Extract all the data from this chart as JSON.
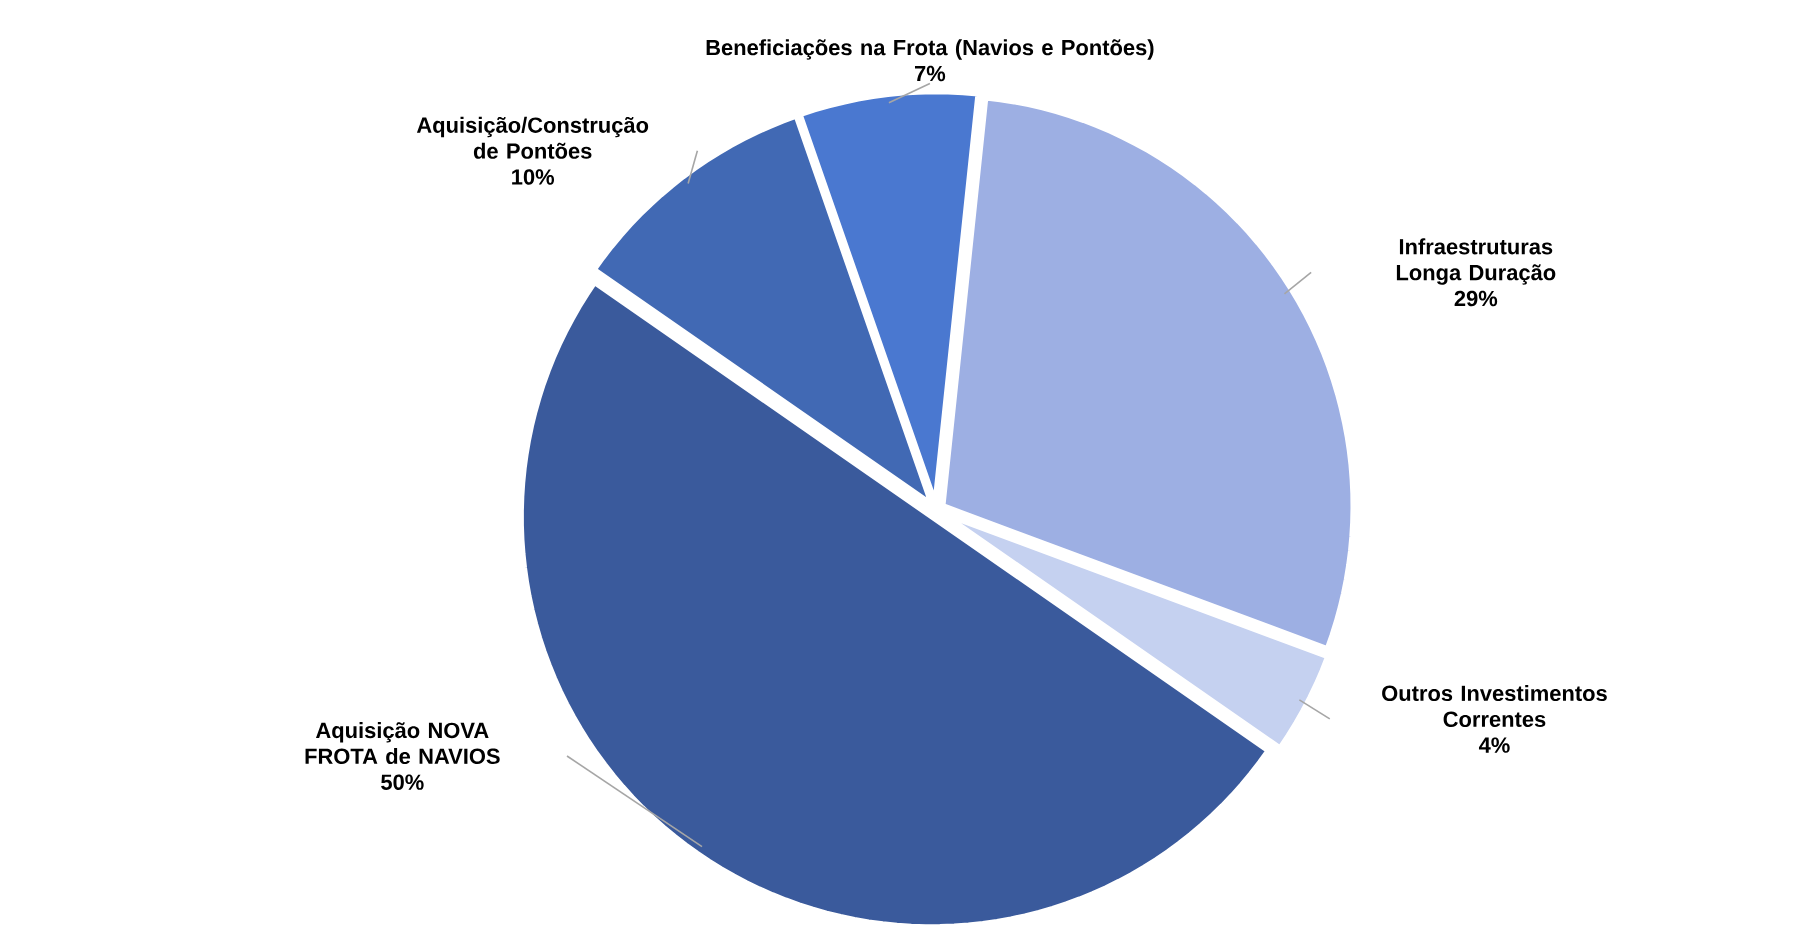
{
  "chart_data": {
    "type": "pie",
    "categories": [
      "Infraestruturas Longa Duração",
      "Outros Investimentos Correntes",
      "Aquisição NOVA FROTA de NAVIOS",
      "Aquisição/Construção de Pontões",
      "Beneficiações na Frota (Navios e Pontões)"
    ],
    "values": [
      29,
      4,
      50,
      10,
      7
    ],
    "value_labels": [
      "29%",
      "4%",
      "50%",
      "10%",
      "7%"
    ],
    "colors": [
      "#9dafe3",
      "#c5d1f0",
      "#3a5a9c",
      "#4169b4",
      "#4a78d0"
    ],
    "legend": false
  }
}
